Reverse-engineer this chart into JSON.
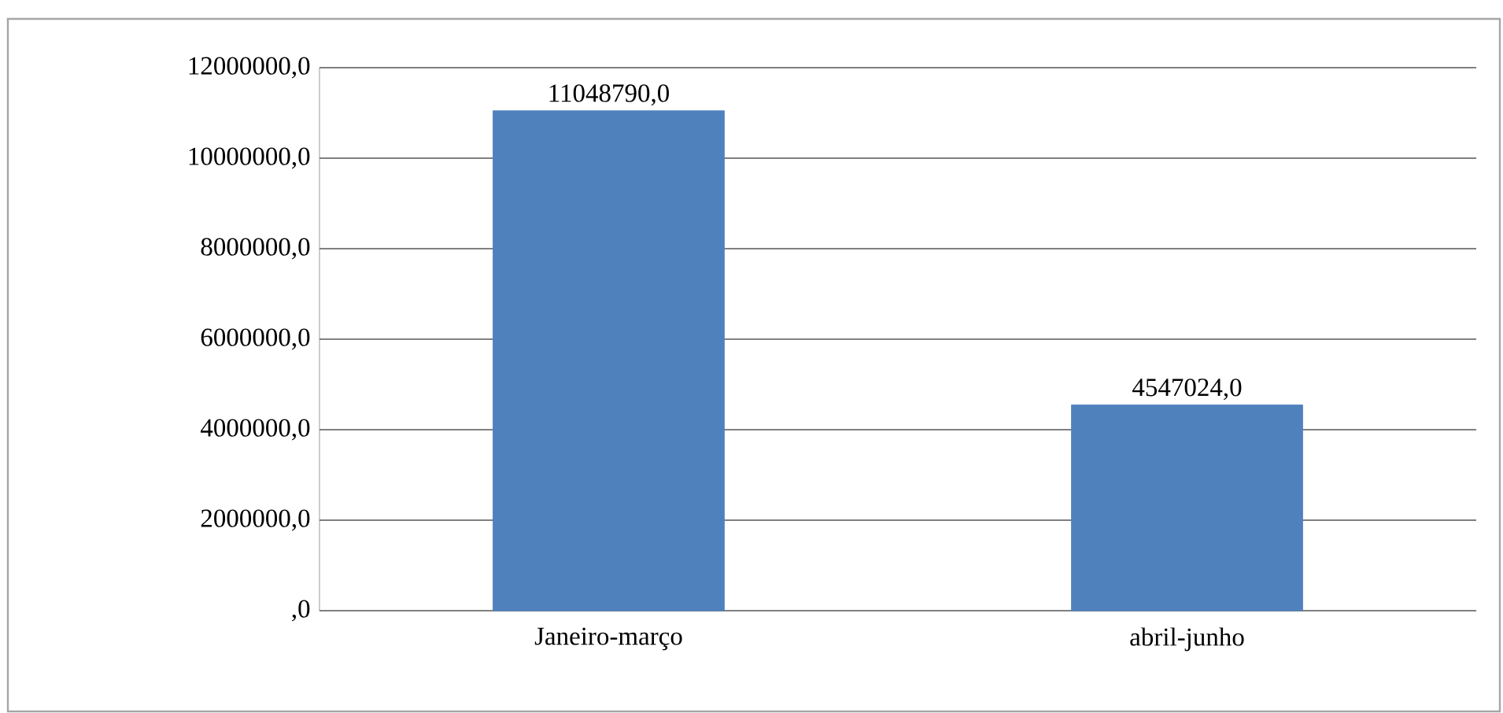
{
  "chart_data": {
    "type": "bar",
    "categories": [
      "Janeiro-março",
      "abril-junho"
    ],
    "values": [
      11048790,
      4547024
    ],
    "value_labels": [
      "11048790,0",
      "4547024,0"
    ],
    "color": "#4f81bd",
    "ylim": [
      0,
      12000000
    ],
    "yticks": [
      {
        "value": 0,
        "label": ",0"
      },
      {
        "value": 2000000,
        "label": "2000000,0"
      },
      {
        "value": 4000000,
        "label": "4000000,0"
      },
      {
        "value": 6000000,
        "label": "6000000,0"
      },
      {
        "value": 8000000,
        "label": "8000000,0"
      },
      {
        "value": 10000000,
        "label": "10000000,0"
      },
      {
        "value": 12000000,
        "label": "12000000,0"
      }
    ],
    "grid": "y"
  }
}
